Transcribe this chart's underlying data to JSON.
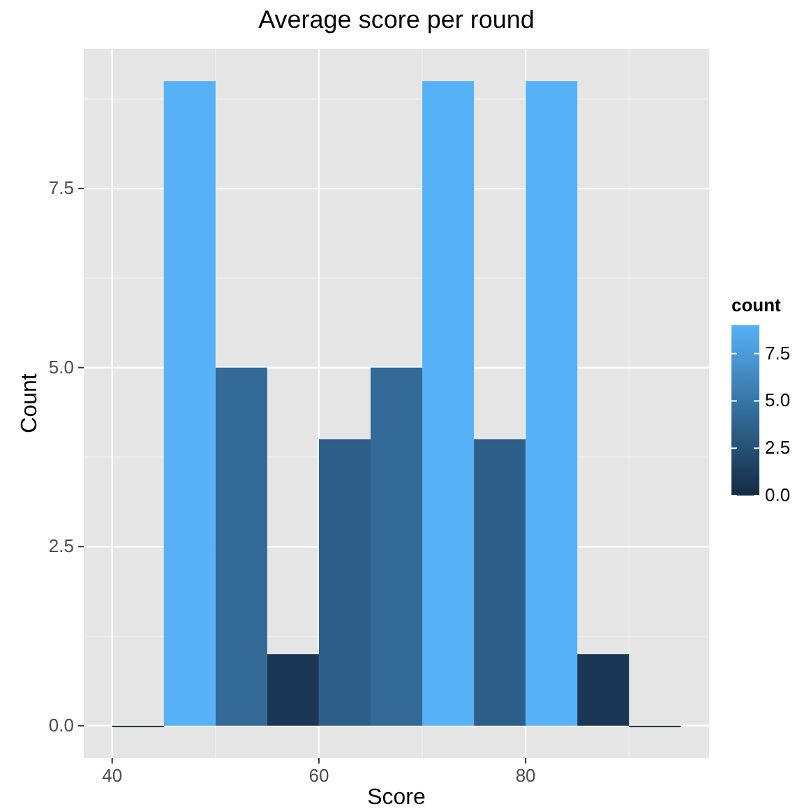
{
  "chart_data": {
    "type": "histogram",
    "title": "Average score per round",
    "xlabel": "Score",
    "ylabel": "Count",
    "bins": [
      40,
      45,
      50,
      55,
      60,
      65,
      70,
      75,
      80,
      85,
      90,
      95
    ],
    "values": [
      0,
      9,
      5,
      1,
      4,
      5,
      9,
      4,
      9,
      1,
      0
    ],
    "colors": [
      "#132b43",
      "#56b1f7",
      "#336a98",
      "#1a3855",
      "#2d5f8a",
      "#336a98",
      "#56b1f7",
      "#2d5f8a",
      "#56b1f7",
      "#1a3855",
      "#132b43"
    ],
    "xlim": [
      37.25,
      97.75
    ],
    "xticks": [
      40,
      60,
      80
    ],
    "ylim": [
      -0.45,
      9.45
    ],
    "yticks": [
      {
        "value": 0,
        "label": "0.0"
      },
      {
        "value": 2.5,
        "label": "2.5"
      },
      {
        "value": 5,
        "label": "5.0"
      },
      {
        "value": 7.5,
        "label": "7.5"
      }
    ],
    "clabel": "count",
    "clim": [
      0,
      9
    ],
    "cticks": [
      {
        "value": 0,
        "label": "0.0"
      },
      {
        "value": 2.5,
        "label": "2.5"
      },
      {
        "value": 5,
        "label": "5.0"
      },
      {
        "value": 7.5,
        "label": "7.5"
      }
    ],
    "grid": true
  }
}
